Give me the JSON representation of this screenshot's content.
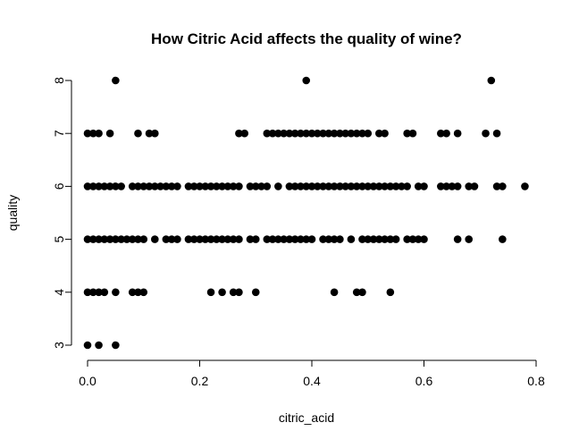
{
  "chart_data": {
    "type": "scatter",
    "title": "How Citric Acid affects the quality of wine?",
    "xlabel": "citric_acid",
    "ylabel": "quality",
    "xlim": [
      0,
      0.8
    ],
    "ylim": [
      3,
      8
    ],
    "x_ticks": [
      "0.0",
      "0.2",
      "0.4",
      "0.6",
      "0.8"
    ],
    "y_ticks": [
      "3",
      "4",
      "5",
      "6",
      "7",
      "8"
    ],
    "grid": false,
    "marker_color": "#000000",
    "points": [
      {
        "x": 0.0,
        "y": 3
      },
      {
        "x": 0.02,
        "y": 3
      },
      {
        "x": 0.05,
        "y": 3
      },
      {
        "x": 0.0,
        "y": 4
      },
      {
        "x": 0.01,
        "y": 4
      },
      {
        "x": 0.02,
        "y": 4
      },
      {
        "x": 0.03,
        "y": 4
      },
      {
        "x": 0.05,
        "y": 4
      },
      {
        "x": 0.08,
        "y": 4
      },
      {
        "x": 0.09,
        "y": 4
      },
      {
        "x": 0.1,
        "y": 4
      },
      {
        "x": 0.22,
        "y": 4
      },
      {
        "x": 0.24,
        "y": 4
      },
      {
        "x": 0.26,
        "y": 4
      },
      {
        "x": 0.27,
        "y": 4
      },
      {
        "x": 0.3,
        "y": 4
      },
      {
        "x": 0.44,
        "y": 4
      },
      {
        "x": 0.48,
        "y": 4
      },
      {
        "x": 0.49,
        "y": 4
      },
      {
        "x": 0.54,
        "y": 4
      },
      {
        "x": 0.0,
        "y": 5
      },
      {
        "x": 0.01,
        "y": 5
      },
      {
        "x": 0.02,
        "y": 5
      },
      {
        "x": 0.03,
        "y": 5
      },
      {
        "x": 0.04,
        "y": 5
      },
      {
        "x": 0.05,
        "y": 5
      },
      {
        "x": 0.06,
        "y": 5
      },
      {
        "x": 0.07,
        "y": 5
      },
      {
        "x": 0.08,
        "y": 5
      },
      {
        "x": 0.09,
        "y": 5
      },
      {
        "x": 0.1,
        "y": 5
      },
      {
        "x": 0.12,
        "y": 5
      },
      {
        "x": 0.14,
        "y": 5
      },
      {
        "x": 0.15,
        "y": 5
      },
      {
        "x": 0.16,
        "y": 5
      },
      {
        "x": 0.18,
        "y": 5
      },
      {
        "x": 0.19,
        "y": 5
      },
      {
        "x": 0.2,
        "y": 5
      },
      {
        "x": 0.21,
        "y": 5
      },
      {
        "x": 0.22,
        "y": 5
      },
      {
        "x": 0.23,
        "y": 5
      },
      {
        "x": 0.24,
        "y": 5
      },
      {
        "x": 0.25,
        "y": 5
      },
      {
        "x": 0.26,
        "y": 5
      },
      {
        "x": 0.27,
        "y": 5
      },
      {
        "x": 0.29,
        "y": 5
      },
      {
        "x": 0.3,
        "y": 5
      },
      {
        "x": 0.32,
        "y": 5
      },
      {
        "x": 0.33,
        "y": 5
      },
      {
        "x": 0.34,
        "y": 5
      },
      {
        "x": 0.35,
        "y": 5
      },
      {
        "x": 0.36,
        "y": 5
      },
      {
        "x": 0.37,
        "y": 5
      },
      {
        "x": 0.38,
        "y": 5
      },
      {
        "x": 0.39,
        "y": 5
      },
      {
        "x": 0.4,
        "y": 5
      },
      {
        "x": 0.42,
        "y": 5
      },
      {
        "x": 0.43,
        "y": 5
      },
      {
        "x": 0.44,
        "y": 5
      },
      {
        "x": 0.45,
        "y": 5
      },
      {
        "x": 0.47,
        "y": 5
      },
      {
        "x": 0.49,
        "y": 5
      },
      {
        "x": 0.5,
        "y": 5
      },
      {
        "x": 0.51,
        "y": 5
      },
      {
        "x": 0.52,
        "y": 5
      },
      {
        "x": 0.53,
        "y": 5
      },
      {
        "x": 0.54,
        "y": 5
      },
      {
        "x": 0.55,
        "y": 5
      },
      {
        "x": 0.57,
        "y": 5
      },
      {
        "x": 0.58,
        "y": 5
      },
      {
        "x": 0.59,
        "y": 5
      },
      {
        "x": 0.6,
        "y": 5
      },
      {
        "x": 0.66,
        "y": 5
      },
      {
        "x": 0.68,
        "y": 5
      },
      {
        "x": 0.74,
        "y": 5
      },
      {
        "x": 0.0,
        "y": 6
      },
      {
        "x": 0.01,
        "y": 6
      },
      {
        "x": 0.02,
        "y": 6
      },
      {
        "x": 0.03,
        "y": 6
      },
      {
        "x": 0.04,
        "y": 6
      },
      {
        "x": 0.05,
        "y": 6
      },
      {
        "x": 0.06,
        "y": 6
      },
      {
        "x": 0.08,
        "y": 6
      },
      {
        "x": 0.09,
        "y": 6
      },
      {
        "x": 0.1,
        "y": 6
      },
      {
        "x": 0.11,
        "y": 6
      },
      {
        "x": 0.12,
        "y": 6
      },
      {
        "x": 0.13,
        "y": 6
      },
      {
        "x": 0.14,
        "y": 6
      },
      {
        "x": 0.15,
        "y": 6
      },
      {
        "x": 0.16,
        "y": 6
      },
      {
        "x": 0.18,
        "y": 6
      },
      {
        "x": 0.19,
        "y": 6
      },
      {
        "x": 0.2,
        "y": 6
      },
      {
        "x": 0.21,
        "y": 6
      },
      {
        "x": 0.22,
        "y": 6
      },
      {
        "x": 0.23,
        "y": 6
      },
      {
        "x": 0.24,
        "y": 6
      },
      {
        "x": 0.25,
        "y": 6
      },
      {
        "x": 0.26,
        "y": 6
      },
      {
        "x": 0.27,
        "y": 6
      },
      {
        "x": 0.29,
        "y": 6
      },
      {
        "x": 0.3,
        "y": 6
      },
      {
        "x": 0.31,
        "y": 6
      },
      {
        "x": 0.32,
        "y": 6
      },
      {
        "x": 0.34,
        "y": 6
      },
      {
        "x": 0.36,
        "y": 6
      },
      {
        "x": 0.37,
        "y": 6
      },
      {
        "x": 0.38,
        "y": 6
      },
      {
        "x": 0.39,
        "y": 6
      },
      {
        "x": 0.4,
        "y": 6
      },
      {
        "x": 0.41,
        "y": 6
      },
      {
        "x": 0.42,
        "y": 6
      },
      {
        "x": 0.43,
        "y": 6
      },
      {
        "x": 0.44,
        "y": 6
      },
      {
        "x": 0.45,
        "y": 6
      },
      {
        "x": 0.46,
        "y": 6
      },
      {
        "x": 0.47,
        "y": 6
      },
      {
        "x": 0.48,
        "y": 6
      },
      {
        "x": 0.49,
        "y": 6
      },
      {
        "x": 0.5,
        "y": 6
      },
      {
        "x": 0.51,
        "y": 6
      },
      {
        "x": 0.52,
        "y": 6
      },
      {
        "x": 0.53,
        "y": 6
      },
      {
        "x": 0.54,
        "y": 6
      },
      {
        "x": 0.55,
        "y": 6
      },
      {
        "x": 0.56,
        "y": 6
      },
      {
        "x": 0.57,
        "y": 6
      },
      {
        "x": 0.59,
        "y": 6
      },
      {
        "x": 0.6,
        "y": 6
      },
      {
        "x": 0.63,
        "y": 6
      },
      {
        "x": 0.64,
        "y": 6
      },
      {
        "x": 0.65,
        "y": 6
      },
      {
        "x": 0.66,
        "y": 6
      },
      {
        "x": 0.68,
        "y": 6
      },
      {
        "x": 0.69,
        "y": 6
      },
      {
        "x": 0.73,
        "y": 6
      },
      {
        "x": 0.74,
        "y": 6
      },
      {
        "x": 0.78,
        "y": 6
      },
      {
        "x": 0.0,
        "y": 7
      },
      {
        "x": 0.01,
        "y": 7
      },
      {
        "x": 0.02,
        "y": 7
      },
      {
        "x": 0.04,
        "y": 7
      },
      {
        "x": 0.09,
        "y": 7
      },
      {
        "x": 0.11,
        "y": 7
      },
      {
        "x": 0.12,
        "y": 7
      },
      {
        "x": 0.27,
        "y": 7
      },
      {
        "x": 0.28,
        "y": 7
      },
      {
        "x": 0.32,
        "y": 7
      },
      {
        "x": 0.33,
        "y": 7
      },
      {
        "x": 0.34,
        "y": 7
      },
      {
        "x": 0.35,
        "y": 7
      },
      {
        "x": 0.36,
        "y": 7
      },
      {
        "x": 0.37,
        "y": 7
      },
      {
        "x": 0.38,
        "y": 7
      },
      {
        "x": 0.39,
        "y": 7
      },
      {
        "x": 0.4,
        "y": 7
      },
      {
        "x": 0.41,
        "y": 7
      },
      {
        "x": 0.42,
        "y": 7
      },
      {
        "x": 0.43,
        "y": 7
      },
      {
        "x": 0.44,
        "y": 7
      },
      {
        "x": 0.45,
        "y": 7
      },
      {
        "x": 0.46,
        "y": 7
      },
      {
        "x": 0.47,
        "y": 7
      },
      {
        "x": 0.48,
        "y": 7
      },
      {
        "x": 0.49,
        "y": 7
      },
      {
        "x": 0.5,
        "y": 7
      },
      {
        "x": 0.52,
        "y": 7
      },
      {
        "x": 0.53,
        "y": 7
      },
      {
        "x": 0.57,
        "y": 7
      },
      {
        "x": 0.58,
        "y": 7
      },
      {
        "x": 0.63,
        "y": 7
      },
      {
        "x": 0.64,
        "y": 7
      },
      {
        "x": 0.66,
        "y": 7
      },
      {
        "x": 0.71,
        "y": 7
      },
      {
        "x": 0.73,
        "y": 7
      },
      {
        "x": 0.05,
        "y": 8
      },
      {
        "x": 0.39,
        "y": 8
      },
      {
        "x": 0.72,
        "y": 8
      }
    ]
  }
}
